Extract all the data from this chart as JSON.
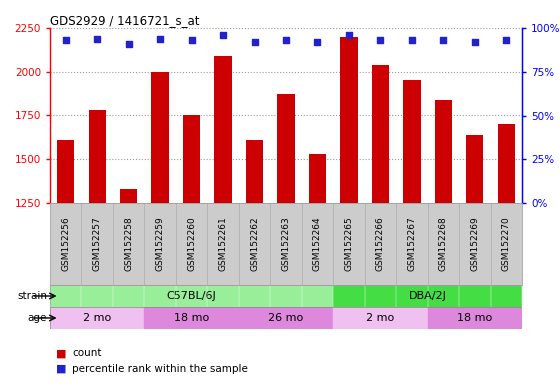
{
  "title": "GDS2929 / 1416721_s_at",
  "samples": [
    "GSM152256",
    "GSM152257",
    "GSM152258",
    "GSM152259",
    "GSM152260",
    "GSM152261",
    "GSM152262",
    "GSM152263",
    "GSM152264",
    "GSM152265",
    "GSM152266",
    "GSM152267",
    "GSM152268",
    "GSM152269",
    "GSM152270"
  ],
  "counts": [
    1610,
    1780,
    1330,
    2000,
    1750,
    2090,
    1610,
    1870,
    1530,
    2200,
    2040,
    1950,
    1840,
    1640,
    1700
  ],
  "percentile_ranks": [
    93,
    94,
    91,
    94,
    93,
    96,
    92,
    93,
    92,
    96,
    93,
    93,
    93,
    92,
    93
  ],
  "bar_color": "#cc0000",
  "dot_color": "#2222cc",
  "ylim_left": [
    1250,
    2250
  ],
  "ylim_right": [
    0,
    100
  ],
  "yticks_left": [
    1250,
    1500,
    1750,
    2000,
    2250
  ],
  "yticks_right": [
    0,
    25,
    50,
    75,
    100
  ],
  "strain_groups": [
    {
      "label": "C57BL/6J",
      "start": 0,
      "end": 9,
      "color": "#99ee99"
    },
    {
      "label": "DBA/2J",
      "start": 9,
      "end": 15,
      "color": "#44dd44"
    }
  ],
  "age_groups": [
    {
      "label": "2 mo",
      "start": 0,
      "end": 3,
      "color": "#f0c0f0"
    },
    {
      "label": "18 mo",
      "start": 3,
      "end": 6,
      "color": "#dd88dd"
    },
    {
      "label": "26 mo",
      "start": 6,
      "end": 9,
      "color": "#dd88dd"
    },
    {
      "label": "2 mo",
      "start": 9,
      "end": 12,
      "color": "#f0c0f0"
    },
    {
      "label": "18 mo",
      "start": 12,
      "end": 15,
      "color": "#dd88dd"
    }
  ],
  "legend_count_color": "#cc0000",
  "legend_pct_color": "#2222cc",
  "xtick_bg": "#cccccc",
  "grid_color": "#999999",
  "plot_bg": "#ffffff"
}
